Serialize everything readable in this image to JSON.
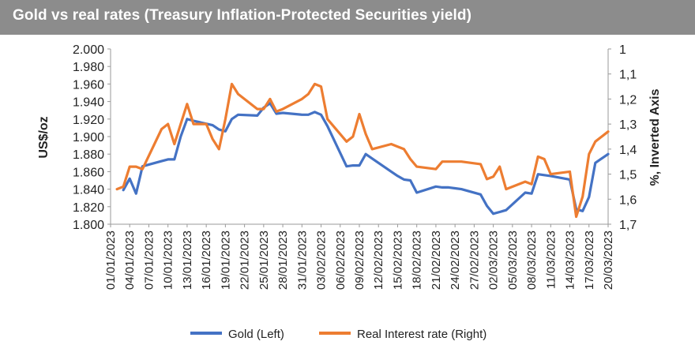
{
  "chart_data": {
    "type": "line",
    "title": "Gold vs real rates (Treasury Inflation-Protected Securities yield)",
    "ylabel_left": "US$/oz",
    "ylabel_right": "%, Inverted Axis",
    "ylim_left": [
      1800,
      2000
    ],
    "yticks_left": [
      1800,
      1820,
      1840,
      1860,
      1880,
      1900,
      1920,
      1940,
      1960,
      1980,
      2000
    ],
    "yticklabels_left": [
      "1.800",
      "1.820",
      "1.840",
      "1.860",
      "1.880",
      "1.900",
      "1.920",
      "1.940",
      "1.960",
      "1.980",
      "2.000"
    ],
    "ylim_right": [
      1.0,
      1.7
    ],
    "right_axis_inverted": true,
    "yticks_right": [
      1.0,
      1.1,
      1.2,
      1.3,
      1.4,
      1.5,
      1.6,
      1.7
    ],
    "yticklabels_right": [
      "1",
      "1,1",
      "1,2",
      "1,3",
      "1,4",
      "1,5",
      "1,6",
      "1,7"
    ],
    "x_range": [
      0,
      78
    ],
    "xticks": [
      0,
      3,
      6,
      9,
      12,
      15,
      18,
      21,
      24,
      27,
      30,
      33,
      36,
      39,
      42,
      45,
      48,
      51,
      54,
      57,
      60,
      63,
      66,
      69,
      72,
      75,
      78
    ],
    "xticklabels": [
      "01/01/2023",
      "04/01/2023",
      "07/01/2023",
      "10/01/2023",
      "13/01/2023",
      "16/01/2023",
      "19/01/2023",
      "22/01/2023",
      "25/01/2023",
      "28/01/2023",
      "31/01/2023",
      "03/02/2023",
      "06/02/2023",
      "09/02/2023",
      "12/02/2023",
      "15/02/2023",
      "18/02/2023",
      "21/02/2023",
      "24/02/2023",
      "27/02/2023",
      "02/03/2023",
      "05/03/2023",
      "08/03/2023",
      "11/03/2023",
      "14/03/2023",
      "17/03/2023",
      "20/03/2023"
    ],
    "grid": false,
    "legend_position": "bottom",
    "series": [
      {
        "name": "Gold (Left)",
        "axis": "left",
        "color": "#4472c4",
        "x": [
          2,
          3,
          4,
          5,
          8,
          9,
          10,
          11,
          12,
          13,
          16,
          17,
          18,
          19,
          20,
          23,
          24,
          25,
          26,
          27,
          30,
          31,
          32,
          33,
          34,
          37,
          38,
          39,
          40,
          41,
          44,
          45,
          46,
          47,
          48,
          51,
          52,
          53,
          54,
          55,
          58,
          59,
          60,
          61,
          62,
          65,
          66,
          67,
          68,
          69,
          72,
          73,
          74,
          75,
          76,
          78
        ],
        "values": [
          1839,
          1852,
          1835,
          1866,
          1872,
          1874,
          1874,
          1900,
          1920,
          1918,
          1913,
          1908,
          1906,
          1920,
          1925,
          1924,
          1933,
          1938,
          1926,
          1927,
          1925,
          1925,
          1928,
          1925,
          1912,
          1866,
          1867,
          1867,
          1880,
          1875,
          1860,
          1855,
          1851,
          1850,
          1836,
          1843,
          1842,
          1842,
          1841,
          1840,
          1834,
          1821,
          1812,
          1814,
          1816,
          1836,
          1835,
          1857,
          1856,
          1855,
          1851,
          1817,
          1815,
          1831,
          1870,
          1880
        ]
      },
      {
        "name": "Real Interest rate (Right)",
        "axis": "right",
        "color": "#ed7d31",
        "x": [
          1,
          2,
          3,
          4,
          5,
          8,
          9,
          10,
          11,
          12,
          13,
          14,
          15,
          16,
          17,
          18,
          19,
          20,
          23,
          24,
          25,
          26,
          27,
          30,
          31,
          32,
          33,
          34,
          37,
          38,
          39,
          40,
          41,
          44,
          45,
          46,
          47,
          48,
          51,
          52,
          53,
          54,
          55,
          58,
          59,
          60,
          61,
          62,
          65,
          66,
          67,
          68,
          69,
          72,
          73,
          74,
          75,
          76,
          78
        ],
        "values": [
          1.56,
          1.55,
          1.47,
          1.47,
          1.48,
          1.32,
          1.3,
          1.38,
          1.3,
          1.22,
          1.3,
          1.3,
          1.3,
          1.36,
          1.4,
          1.28,
          1.14,
          1.18,
          1.24,
          1.24,
          1.2,
          1.25,
          1.24,
          1.2,
          1.18,
          1.14,
          1.15,
          1.28,
          1.37,
          1.35,
          1.26,
          1.34,
          1.4,
          1.38,
          1.39,
          1.4,
          1.44,
          1.47,
          1.48,
          1.45,
          1.45,
          1.45,
          1.45,
          1.46,
          1.52,
          1.51,
          1.47,
          1.56,
          1.53,
          1.54,
          1.43,
          1.44,
          1.5,
          1.49,
          1.67,
          1.59,
          1.42,
          1.37,
          1.33
        ]
      }
    ]
  }
}
